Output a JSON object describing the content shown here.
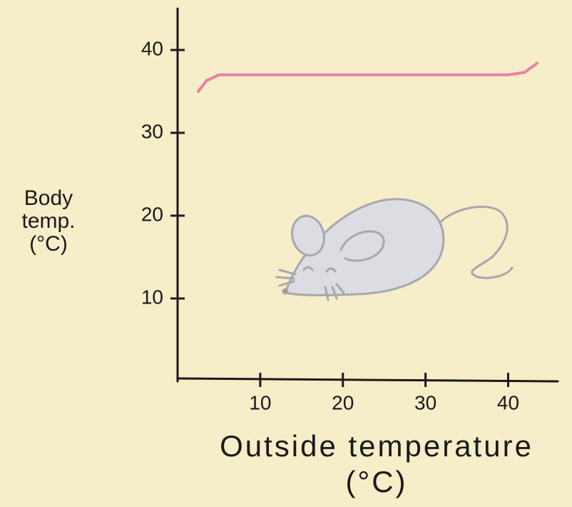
{
  "chart_data": {
    "type": "line",
    "x": [
      2.5,
      3.5,
      5,
      10,
      20,
      30,
      40,
      42,
      43.5
    ],
    "series": [
      {
        "color": "#e97fa0",
        "values": [
          35,
          36.3,
          37,
          37,
          37,
          37,
          37,
          37.3,
          38.4
        ]
      }
    ],
    "xlabel": "Outside temperature (°C)",
    "ylabel": "Body temp. (°C)",
    "xlim": [
      0,
      46
    ],
    "xticks": [
      10,
      20,
      30,
      40
    ],
    "ylim": [
      0,
      45
    ],
    "yticks": [
      10,
      20,
      30,
      40
    ],
    "grid": false
  }
}
